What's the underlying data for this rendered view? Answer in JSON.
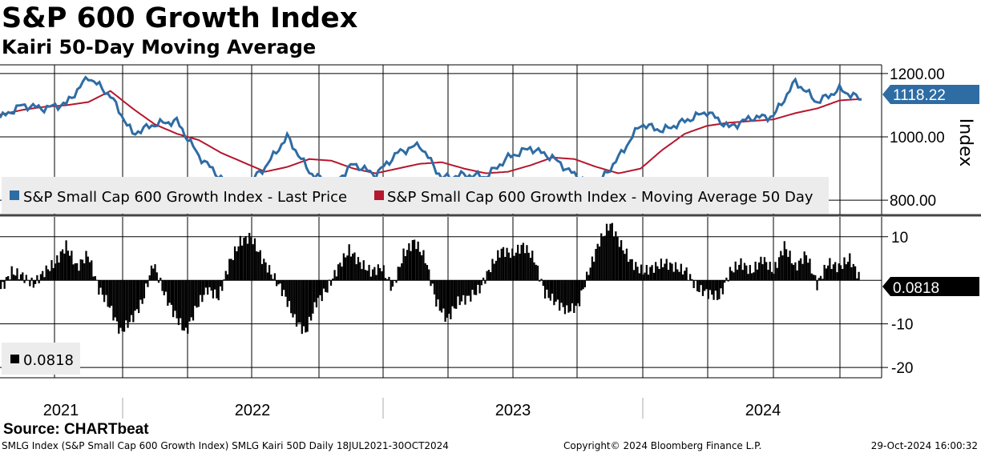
{
  "header": {
    "title": "S&P 600 Growth Index",
    "subtitle": "Kairi 50-Day Moving Average"
  },
  "footer": {
    "source": "Source: CHARTbeat",
    "left": "SMLG Index (S&P Small Cap 600 Growth Index) SMLG Kairi 50D  Daily 18JUL2021-30OCT2024",
    "middle": "Copyright© 2024 Bloomberg Finance L.P.",
    "right": "29-Oct-2024 16:00:32"
  },
  "colors": {
    "price": "#2e6ca4",
    "moving_average": "#b5172f",
    "kairi": "#000000",
    "grid": "#000000"
  },
  "chart_data": [
    {
      "type": "line",
      "ylabel": "Index",
      "ylim": [
        760,
        1220
      ],
      "yticks": [
        {
          "value": 800,
          "label": "800.00"
        },
        {
          "value": 1000,
          "label": "1000.00"
        },
        {
          "value": 1200,
          "label": "1200.00"
        }
      ],
      "x": [
        "2021-07",
        "2021-08",
        "2021-09",
        "2021-10",
        "2021-11",
        "2021-12",
        "2022-01",
        "2022-02",
        "2022-03",
        "2022-04",
        "2022-05",
        "2022-06",
        "2022-07",
        "2022-08",
        "2022-09",
        "2022-10",
        "2022-11",
        "2022-12",
        "2023-01",
        "2023-02",
        "2023-03",
        "2023-04",
        "2023-05",
        "2023-06",
        "2023-07",
        "2023-08",
        "2023-09",
        "2023-10",
        "2023-11",
        "2023-12",
        "2024-01",
        "2024-02",
        "2024-03",
        "2024-04",
        "2024-05",
        "2024-06",
        "2024-07",
        "2024-08",
        "2024-09",
        "2024-10"
      ],
      "series": [
        {
          "name": "S&P Small Cap 600 Growth Index - Last Price",
          "values": [
            1060,
            1100,
            1090,
            1105,
            1190,
            1130,
            1010,
            1040,
            1050,
            940,
            870,
            835,
            905,
            1000,
            890,
            845,
            915,
            880,
            950,
            975,
            870,
            880,
            875,
            935,
            965,
            935,
            880,
            845,
            935,
            1040,
            1020,
            1050,
            1080,
            1030,
            1060,
            1065,
            1175,
            1110,
            1150,
            1118
          ]
        },
        {
          "name": "S&P Small Cap 600 Growth Index - Moving Average 50 Day",
          "values": [
            1070,
            1085,
            1095,
            1100,
            1110,
            1145,
            1090,
            1040,
            1010,
            990,
            950,
            920,
            890,
            905,
            930,
            925,
            900,
            885,
            900,
            915,
            920,
            900,
            885,
            890,
            910,
            935,
            930,
            905,
            885,
            900,
            960,
            1010,
            1035,
            1045,
            1050,
            1055,
            1075,
            1090,
            1115,
            1120
          ]
        }
      ],
      "last_value_label": "1118.22",
      "legend": "bottom"
    },
    {
      "type": "bar",
      "ylim": [
        -22,
        14
      ],
      "yticks": [
        {
          "value": 10,
          "label": "10"
        },
        {
          "value": -10,
          "label": "-10"
        },
        {
          "value": -20,
          "label": "-20"
        }
      ],
      "series": [
        {
          "name": "0.0818",
          "values": [
            -2,
            2,
            1,
            -1,
            2,
            4,
            8,
            3,
            6,
            -2,
            -6,
            -12,
            -9,
            -5,
            4,
            -3,
            -8,
            -12,
            -6,
            -2,
            -4,
            4,
            9,
            10,
            5,
            1,
            -3,
            -9,
            -12,
            -5,
            -2,
            3,
            7,
            4,
            2,
            3,
            -2,
            6,
            9,
            5,
            -5,
            -9,
            -5,
            -4,
            -2,
            3,
            7,
            6,
            8,
            5,
            -3,
            -5,
            -7,
            -6,
            2,
            9,
            13,
            8,
            4,
            2,
            3,
            4,
            3,
            2,
            -2,
            -3,
            -4,
            2,
            4,
            2,
            5,
            2,
            8,
            3,
            6,
            -1,
            4,
            3,
            5,
            0.0818
          ]
        }
      ],
      "last_value_label": "0.0818"
    }
  ],
  "x_axis": {
    "years": [
      "2021",
      "2022",
      "2023",
      "2024"
    ]
  }
}
